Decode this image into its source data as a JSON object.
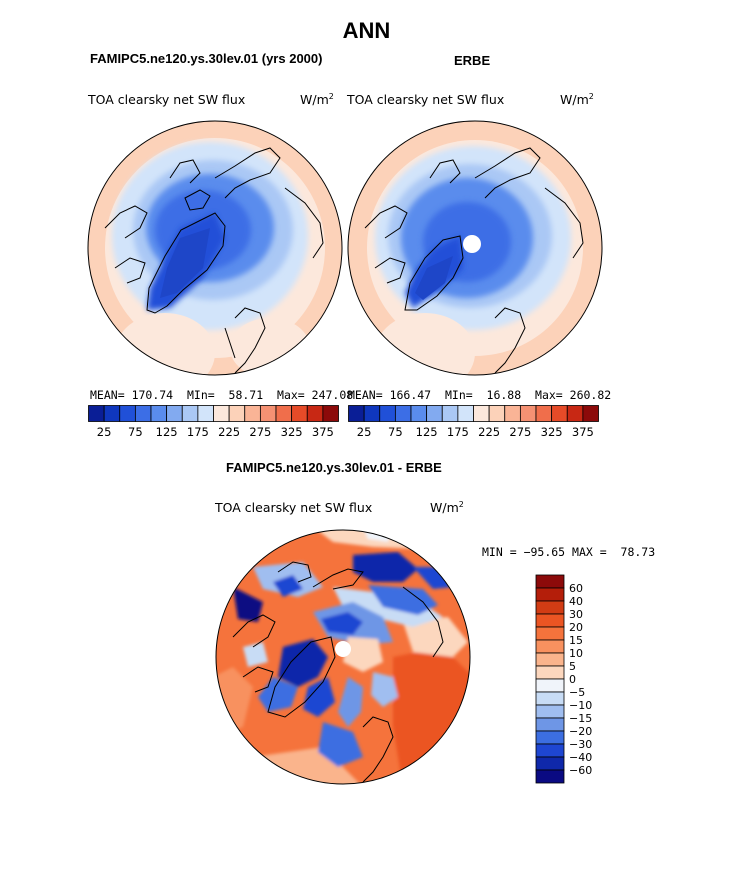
{
  "page": {
    "title": "ANN",
    "left_case_title": "FAMIPC5.ne120.ys.30lev.01 (yrs 2000)",
    "right_case_title": "ERBE",
    "diff_title": "FAMIPC5.ne120.ys.30lev.01 - ERBE",
    "field_label": "TOA clearsky net SW flux",
    "units_base": "W/m",
    "units_exp": "2"
  },
  "chart_data": [
    {
      "type": "heatmap",
      "projection": "north-polar-stereographic",
      "panel": "model",
      "title": "FAMIPC5.ne120.ys.30lev.01 (yrs 2000)",
      "variable": "TOA clearsky net SW flux",
      "units": "W/m2",
      "stats": {
        "mean_label": "MEAN=",
        "mean": "170.74",
        "min_label": "MIn=",
        "min": "58.71",
        "max_label": "Max=",
        "max": "247.08"
      },
      "colorbar": {
        "ticks": [
          "25",
          "75",
          "125",
          "175",
          "225",
          "275",
          "325",
          "375"
        ],
        "colors": [
          "#0a1e96",
          "#0f37be",
          "#2050d8",
          "#3c6ee6",
          "#5a8ced",
          "#82aaf0",
          "#aac8f5",
          "#d2e4fa",
          "#fce8dc",
          "#fcd2b9",
          "#fab496",
          "#f59173",
          "#f06e4b",
          "#e64b28",
          "#c82814",
          "#8c0a0a"
        ]
      }
    },
    {
      "type": "heatmap",
      "projection": "north-polar-stereographic",
      "panel": "observations",
      "title": "ERBE",
      "variable": "TOA clearsky net SW flux",
      "units": "W/m2",
      "stats": {
        "mean_label": "MEAN=",
        "mean": "166.47",
        "min_label": "MIn=",
        "min": "16.88",
        "max_label": "Max=",
        "max": "260.82"
      },
      "colorbar": {
        "ticks": [
          "25",
          "75",
          "125",
          "175",
          "225",
          "275",
          "325",
          "375"
        ],
        "colors": [
          "#0a1e96",
          "#0f37be",
          "#2050d8",
          "#3c6ee6",
          "#5a8ced",
          "#82aaf0",
          "#aac8f5",
          "#d2e4fa",
          "#fce8dc",
          "#fcd2b9",
          "#fab496",
          "#f59173",
          "#f06e4b",
          "#e64b28",
          "#c82814",
          "#8c0a0a"
        ]
      }
    },
    {
      "type": "heatmap",
      "projection": "north-polar-stereographic",
      "panel": "difference",
      "title": "FAMIPC5.ne120.ys.30lev.01 - ERBE",
      "variable": "TOA clearsky net SW flux",
      "units": "W/m2",
      "stats": {
        "min_label": "MIN =",
        "min": "−95.65",
        "max_label": "MAX =",
        "max": "78.73"
      },
      "colorbar": {
        "ticks": [
          "60",
          "40",
          "30",
          "20",
          "15",
          "10",
          "5",
          "0",
          "−5",
          "−10",
          "−15",
          "−20",
          "−30",
          "−40",
          "−60"
        ],
        "colors": [
          "#8c0a0a",
          "#b41e0a",
          "#d23c14",
          "#eb5523",
          "#f5733c",
          "#f8915f",
          "#fab48c",
          "#fcd7be",
          "#f0f4fa",
          "#c8dcf5",
          "#a0bef0",
          "#6e96e6",
          "#3c6ee1",
          "#1e46d2",
          "#0f28aa",
          "#0a0a82"
        ]
      }
    }
  ]
}
